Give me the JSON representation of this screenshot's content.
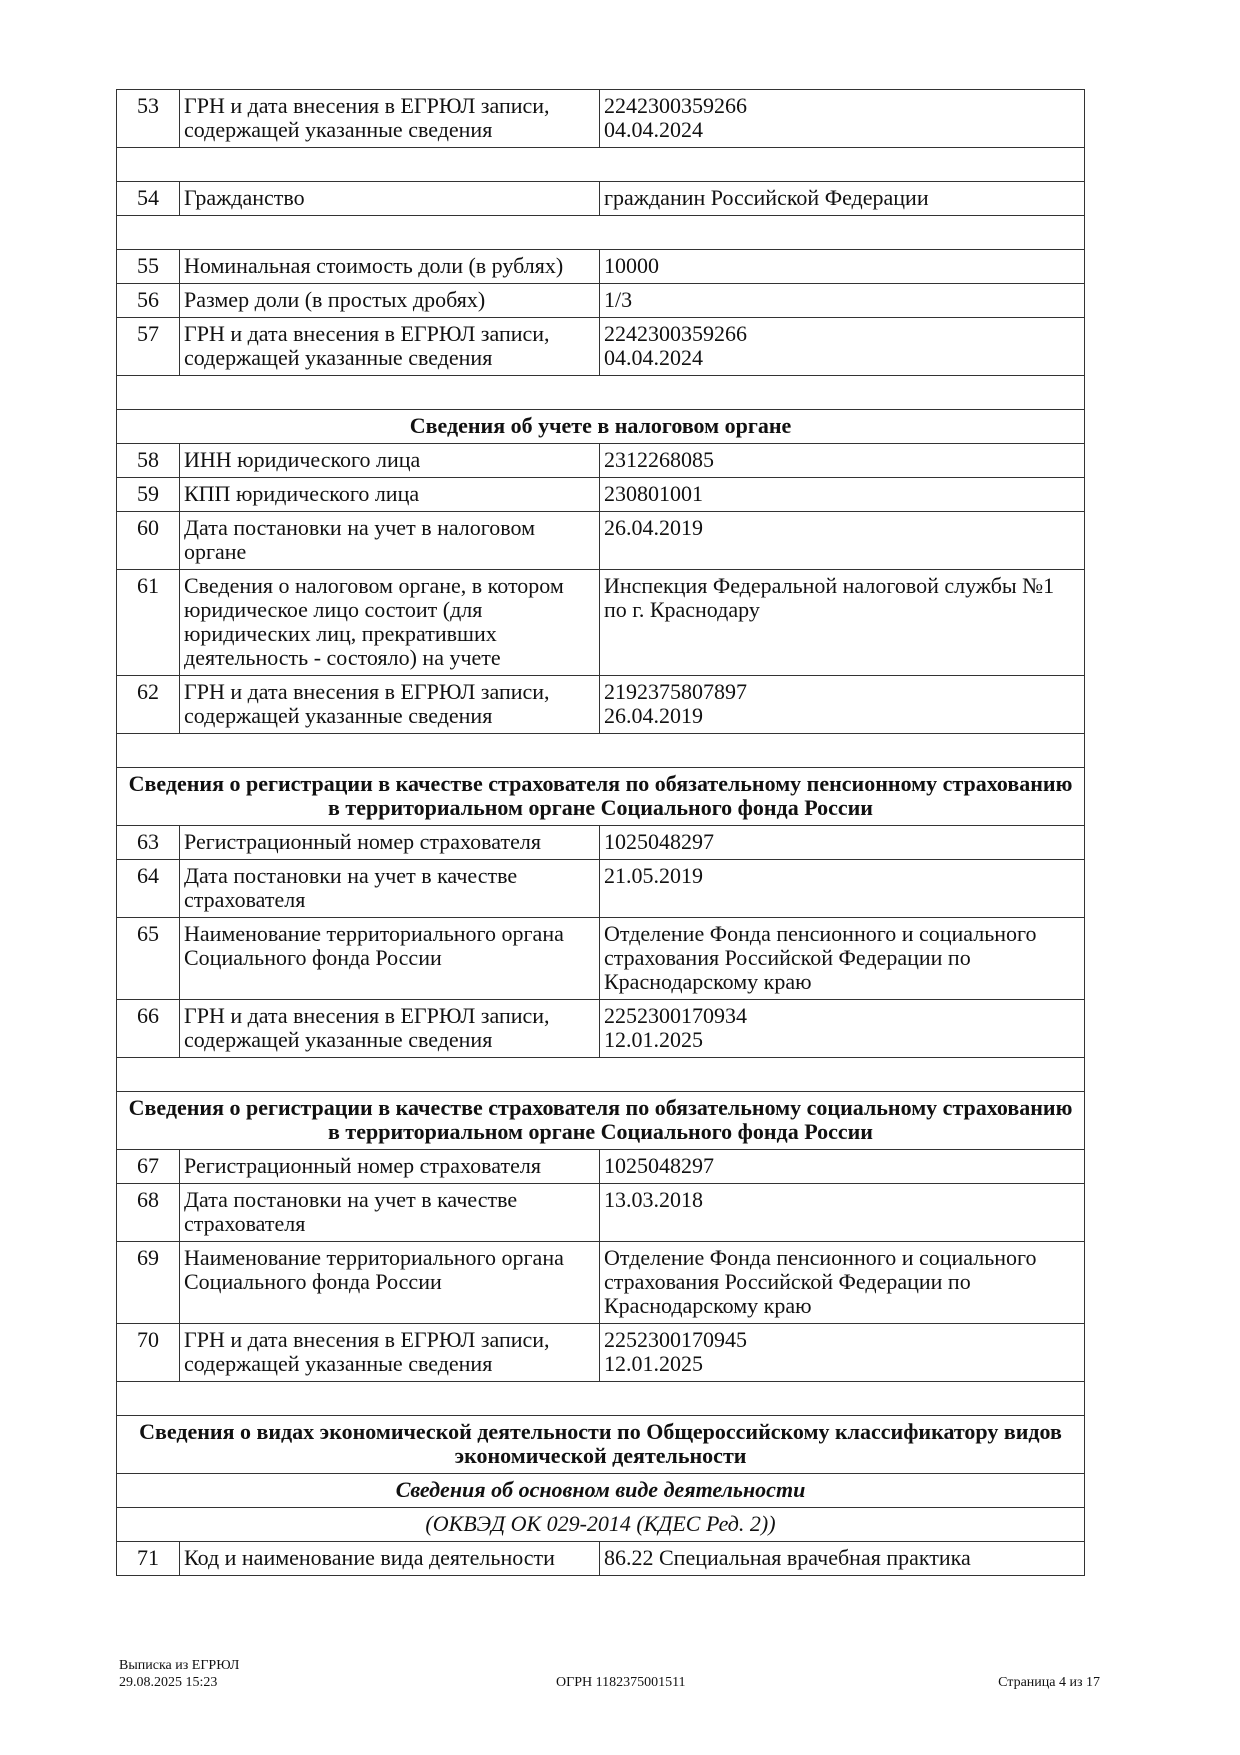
{
  "rows": [
    {
      "type": "row",
      "num": "53",
      "label": "ГРН и дата внесения в ЕГРЮЛ записи, содержащей указанные сведения",
      "value": "2242300359266\n04.04.2024"
    },
    {
      "type": "gap"
    },
    {
      "type": "row",
      "num": "54",
      "label": "Гражданство",
      "value": "гражданин Российской Федерации"
    },
    {
      "type": "gap"
    },
    {
      "type": "row",
      "num": "55",
      "label": "Номинальная стоимость доли (в рублях)",
      "value": "10000"
    },
    {
      "type": "row",
      "num": "56",
      "label": "Размер доли (в простых дробях)",
      "value": "1/3"
    },
    {
      "type": "row",
      "num": "57",
      "label": "ГРН и дата внесения в ЕГРЮЛ записи, содержащей указанные сведения",
      "value": "2242300359266\n04.04.2024"
    },
    {
      "type": "gap"
    },
    {
      "type": "sec",
      "text": "Сведения об учете в налоговом органе"
    },
    {
      "type": "row",
      "num": "58",
      "label": "ИНН юридического лица",
      "value": "2312268085"
    },
    {
      "type": "row",
      "num": "59",
      "label": "КПП юридического лица",
      "value": "230801001"
    },
    {
      "type": "row",
      "num": "60",
      "label": "Дата постановки на учет в налоговом органе",
      "value": "26.04.2019"
    },
    {
      "type": "row",
      "num": "61",
      "label": "Сведения о налоговом органе, в котором юридическое лицо состоит (для юридических лиц, прекративших деятельность - состояло) на учете",
      "value": "Инспекция Федеральной налоговой службы №1 по г. Краснодару"
    },
    {
      "type": "row",
      "num": "62",
      "label": "ГРН и дата внесения в ЕГРЮЛ записи, содержащей указанные сведения",
      "value": "2192375807897\n26.04.2019"
    },
    {
      "type": "gap"
    },
    {
      "type": "sec",
      "text": "Сведения о регистрации в качестве страхователя по обязательному пенсионному страхованию в территориальном органе Социального фонда России"
    },
    {
      "type": "row",
      "num": "63",
      "label": "Регистрационный номер страхователя",
      "value": "1025048297"
    },
    {
      "type": "row",
      "num": "64",
      "label": "Дата постановки на учет в качестве страхователя",
      "value": "21.05.2019"
    },
    {
      "type": "row",
      "num": "65",
      "label": "Наименование территориального органа Социального фонда России",
      "value": "Отделение Фонда пенсионного и социального страхования Российской Федерации по Краснодарскому краю"
    },
    {
      "type": "row",
      "num": "66",
      "label": "ГРН и дата внесения в ЕГРЮЛ записи, содержащей указанные сведения",
      "value": "2252300170934\n12.01.2025"
    },
    {
      "type": "gap"
    },
    {
      "type": "sec",
      "text": "Сведения о регистрации в качестве страхователя по обязательному социальному страхованию в территориальном органе Социального фонда России"
    },
    {
      "type": "row",
      "num": "67",
      "label": "Регистрационный номер страхователя",
      "value": "1025048297"
    },
    {
      "type": "row",
      "num": "68",
      "label": "Дата постановки на учет в качестве страхователя",
      "value": "13.03.2018"
    },
    {
      "type": "row",
      "num": "69",
      "label": "Наименование территориального органа Социального фонда России",
      "value": "Отделение Фонда пенсионного и социального страхования Российской Федерации по Краснодарскому краю"
    },
    {
      "type": "row",
      "num": "70",
      "label": "ГРН и дата внесения в ЕГРЮЛ записи, содержащей указанные сведения",
      "value": "2252300170945\n12.01.2025"
    },
    {
      "type": "gap"
    },
    {
      "type": "sec",
      "text": "Сведения о видах экономической деятельности по Общероссийскому классификатору видов экономической деятельности"
    },
    {
      "type": "sub",
      "text": "Сведения об основном виде деятельности"
    },
    {
      "type": "cls",
      "text": "(ОКВЭД ОК 029-2014 (КДЕС Ред. 2))"
    },
    {
      "type": "row",
      "num": "71",
      "label": "Код и наименование вида деятельности",
      "value": "86.22 Специальная врачебная практика"
    }
  ],
  "footer": {
    "doc_title": "Выписка из ЕГРЮЛ",
    "datetime": "29.08.2025 15:23",
    "ogrn": "ОГРН 1182375001511",
    "page": "Страница 4 из 17"
  }
}
